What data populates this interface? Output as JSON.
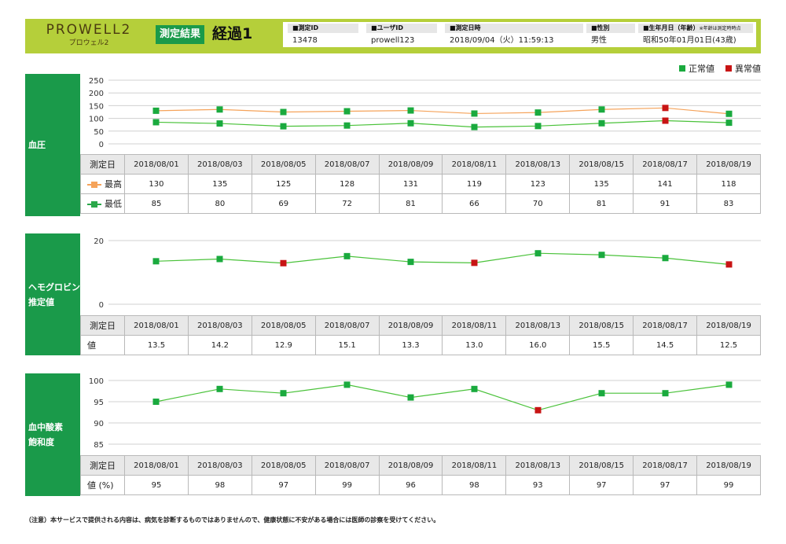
{
  "header": {
    "logo_main": "PROWELL2",
    "logo_sub": "プロウェル2",
    "report_label": "測定結果",
    "report_title": "経過1",
    "info": [
      {
        "key": "■測定ID",
        "note": "",
        "value": "13478"
      },
      {
        "key": "■ユーザID",
        "note": "",
        "value": "prowell123"
      },
      {
        "key": "■測定日時",
        "note": "",
        "value": "2018/09/04（火）11:59:13"
      },
      {
        "key": "■性別",
        "note": "",
        "value": "男性"
      },
      {
        "key": "■生年月日（年齢）",
        "note": "※年齢は測定時時点",
        "value": "昭和50年01月01日(43歳)"
      }
    ]
  },
  "legend": {
    "normal_label": "正常値",
    "abnormal_label": "異常値",
    "normal_color": "#1aaa3e",
    "abnormal_color": "#c81414"
  },
  "colors": {
    "accent_green": "#1a9a4a",
    "header_bg": "#b5cf3a",
    "systolic_line": "#f5a35a",
    "diastolic_line": "#4ac23a",
    "single_line": "#4ac23a",
    "grid": "#d0d0d0"
  },
  "table_header_label": "測定日",
  "chart_data": [
    {
      "type": "line",
      "title": "血圧",
      "ylim": [
        0,
        250
      ],
      "yticks": [
        0,
        50,
        100,
        150,
        200,
        250
      ],
      "categories": [
        "2018/08/01",
        "2018/08/03",
        "2018/08/05",
        "2018/08/07",
        "2018/08/09",
        "2018/08/11",
        "2018/08/13",
        "2018/08/15",
        "2018/08/17",
        "2018/08/19"
      ],
      "series": [
        {
          "name": "最高",
          "values": [
            130,
            135,
            125,
            128,
            131,
            119,
            123,
            135,
            141,
            118
          ],
          "abnormal": [
            false,
            false,
            false,
            false,
            false,
            false,
            false,
            false,
            true,
            false
          ]
        },
        {
          "name": "最低",
          "values": [
            85,
            80,
            69,
            72,
            81,
            66,
            70,
            81,
            91,
            83
          ],
          "abnormal": [
            false,
            false,
            false,
            false,
            false,
            false,
            false,
            false,
            true,
            false
          ]
        }
      ]
    },
    {
      "type": "line",
      "title": "ヘモグロビン推定値",
      "title_lines": [
        "ヘモグロビン",
        "推定値"
      ],
      "ylim": [
        0,
        20
      ],
      "yticks": [
        0,
        20
      ],
      "categories": [
        "2018/08/01",
        "2018/08/03",
        "2018/08/05",
        "2018/08/07",
        "2018/08/09",
        "2018/08/11",
        "2018/08/13",
        "2018/08/15",
        "2018/08/17",
        "2018/08/19"
      ],
      "series": [
        {
          "name": "値",
          "values": [
            13.5,
            14.2,
            12.9,
            15.1,
            13.3,
            13.0,
            16.0,
            15.5,
            14.5,
            12.5
          ],
          "display": [
            "13.5",
            "14.2",
            "12.9",
            "15.1",
            "13.3",
            "13.0",
            "16.0",
            "15.5",
            "14.5",
            "12.5"
          ],
          "abnormal": [
            false,
            false,
            true,
            false,
            false,
            true,
            false,
            false,
            false,
            true
          ]
        }
      ]
    },
    {
      "type": "line",
      "title": "血中酸素飽和度",
      "title_lines": [
        "血中酸素",
        "飽和度"
      ],
      "ylim": [
        85,
        100
      ],
      "yticks": [
        85,
        90,
        95,
        100
      ],
      "categories": [
        "2018/08/01",
        "2018/08/03",
        "2018/08/05",
        "2018/08/07",
        "2018/08/09",
        "2018/08/11",
        "2018/08/13",
        "2018/08/15",
        "2018/08/17",
        "2018/08/19"
      ],
      "series": [
        {
          "name": "値 (%)",
          "values": [
            95,
            98,
            97,
            99,
            96,
            98,
            93,
            97,
            97,
            99
          ],
          "abnormal": [
            false,
            false,
            false,
            false,
            false,
            false,
            true,
            false,
            false,
            false
          ]
        }
      ]
    }
  ],
  "footer_note": "（注意）本サービスで提供される内容は、病気を診断するものではありませんので、健康状態に不安がある場合には医師の診察を受けてください。"
}
